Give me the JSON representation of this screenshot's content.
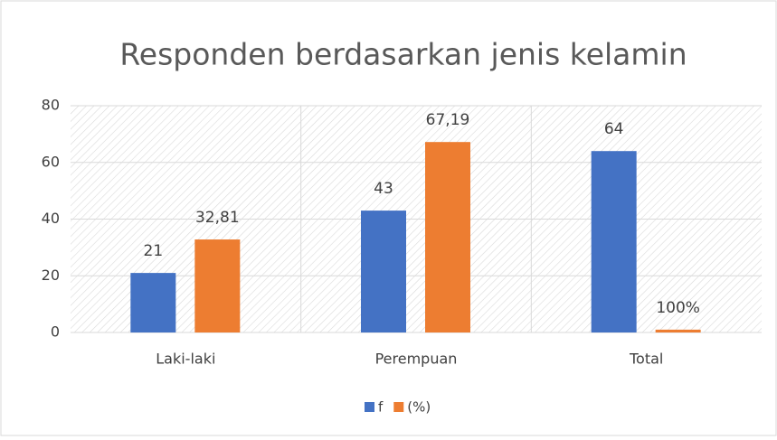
{
  "chart_data": {
    "type": "bar",
    "title": "Responden  berdasarkan jenis kelamin",
    "categories": [
      "Laki-laki",
      "Perempuan",
      "Total"
    ],
    "series": [
      {
        "name": "f",
        "color": "#4472c4",
        "values": [
          21,
          43,
          64
        ]
      },
      {
        "name": "(%)",
        "color": "#ed7d31",
        "values": [
          32.81,
          67.19,
          1
        ],
        "value_labels": [
          "32,81",
          "67,19",
          "100%"
        ]
      }
    ],
    "ylim": [
      0,
      80
    ],
    "yticks": [
      0,
      20,
      40,
      60,
      80
    ],
    "grid": true,
    "legend": "bottom"
  }
}
